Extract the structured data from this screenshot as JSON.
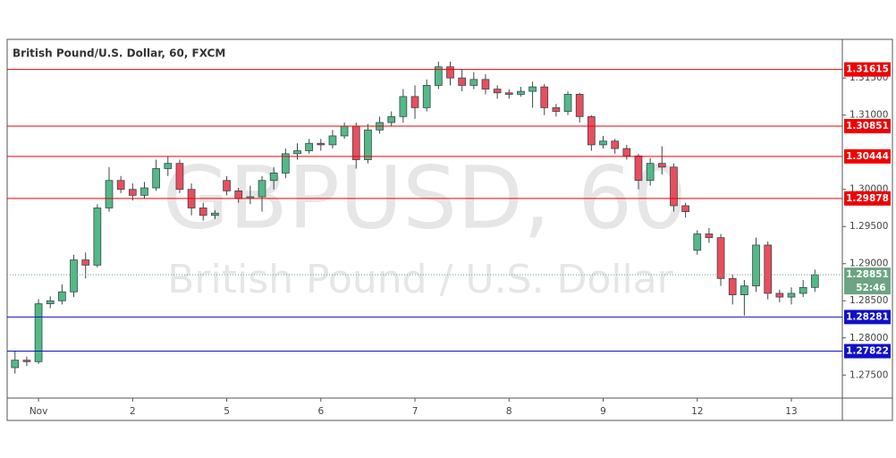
{
  "chart_data": {
    "type": "candlestick",
    "title": "British Pound/U.S. Dollar, 60, FXCM",
    "watermark": "GBPUSD, 60",
    "watermark_subtitle": "British Pound / U.S. Dollar",
    "x": [
      -6,
      -3,
      0,
      3,
      6,
      9,
      12,
      15,
      18,
      21,
      24,
      27,
      30,
      33,
      36,
      39,
      42,
      45,
      48,
      51,
      54,
      57,
      60,
      63,
      66,
      69,
      72,
      75,
      78,
      81,
      84,
      87,
      90,
      93,
      96,
      99,
      102,
      105,
      108,
      111,
      114,
      117,
      120,
      123,
      126,
      129,
      132,
      135,
      138,
      141,
      144,
      147,
      150,
      153,
      156,
      159,
      162,
      165,
      168,
      171,
      174,
      177,
      180,
      183,
      186,
      189,
      192,
      195,
      198
    ],
    "open": [
      1.276,
      1.277,
      1.2768,
      1.2846,
      1.285,
      1.2862,
      1.2905,
      1.2898,
      1.2975,
      1.3012,
      1.3,
      1.2992,
      1.3002,
      1.3028,
      1.3035,
      1.3,
      1.2975,
      1.2965,
      1.3012,
      1.2998,
      1.2988,
      1.299,
      1.3012,
      1.3022,
      1.3048,
      1.3052,
      1.3062,
      1.306,
      1.3072,
      1.3085,
      1.304,
      1.308,
      1.309,
      1.3098,
      1.3125,
      1.311,
      1.314,
      1.3165,
      1.315,
      1.314,
      1.3148,
      1.3135,
      1.313,
      1.3128,
      1.3132,
      1.3138,
      1.311,
      1.3105,
      1.3128,
      1.3098,
      1.306,
      1.3065,
      1.3055,
      1.3045,
      1.3012,
      1.3035,
      1.303,
      1.2978,
      1.2918,
      1.294,
      1.2935,
      1.288,
      1.2858,
      1.287,
      1.2925,
      1.286,
      1.2855,
      1.286,
      1.2868
    ],
    "high": [
      1.2782,
      1.2775,
      1.2852,
      1.2856,
      1.2872,
      1.2912,
      1.2915,
      1.298,
      1.303,
      1.3018,
      1.3008,
      1.301,
      1.304,
      1.3045,
      1.304,
      1.3008,
      1.2982,
      1.2972,
      1.3018,
      1.3002,
      1.3005,
      1.3018,
      1.303,
      1.3055,
      1.3062,
      1.3068,
      1.3068,
      1.308,
      1.309,
      1.309,
      1.3088,
      1.3098,
      1.3105,
      1.3135,
      1.314,
      1.3148,
      1.3172,
      1.3172,
      1.3162,
      1.3158,
      1.3155,
      1.314,
      1.3135,
      1.3138,
      1.3145,
      1.3142,
      1.3115,
      1.3132,
      1.313,
      1.31,
      1.3072,
      1.3068,
      1.306,
      1.3048,
      1.3042,
      1.3058,
      1.3035,
      1.2982,
      1.2945,
      1.2948,
      1.294,
      1.2885,
      1.2878,
      1.2935,
      1.293,
      1.2865,
      1.2868,
      1.2878,
      1.2892
    ],
    "low": [
      1.2752,
      1.2762,
      1.2765,
      1.284,
      1.2845,
      1.2855,
      1.288,
      1.2895,
      1.297,
      1.2995,
      1.2985,
      1.2988,
      1.2998,
      1.3018,
      1.2995,
      1.2965,
      1.2958,
      1.296,
      1.2992,
      1.2982,
      1.298,
      1.297,
      1.3,
      1.3015,
      1.304,
      1.3048,
      1.3052,
      1.3055,
      1.3068,
      1.3028,
      1.3035,
      1.3075,
      1.3085,
      1.309,
      1.3095,
      1.3105,
      1.3135,
      1.314,
      1.3132,
      1.3135,
      1.3128,
      1.3122,
      1.3122,
      1.3125,
      1.311,
      1.31,
      1.3098,
      1.31,
      1.309,
      1.3052,
      1.3055,
      1.3048,
      1.304,
      1.3,
      1.3005,
      1.302,
      1.297,
      1.2962,
      1.2912,
      1.2928,
      1.287,
      1.2845,
      1.283,
      1.2862,
      1.2852,
      1.2848,
      1.2845,
      1.2855,
      1.2862
    ],
    "close": [
      1.277,
      1.2768,
      1.2846,
      1.285,
      1.2862,
      1.2905,
      1.2898,
      1.2975,
      1.3012,
      1.3,
      1.2992,
      1.3002,
      1.3028,
      1.3035,
      1.3,
      1.2975,
      1.2965,
      1.2968,
      1.2998,
      1.2988,
      1.299,
      1.3012,
      1.3022,
      1.3048,
      1.3052,
      1.3062,
      1.306,
      1.3072,
      1.3085,
      1.304,
      1.308,
      1.309,
      1.3098,
      1.3125,
      1.311,
      1.314,
      1.3165,
      1.315,
      1.314,
      1.3148,
      1.3135,
      1.313,
      1.3128,
      1.3132,
      1.3138,
      1.311,
      1.3105,
      1.3128,
      1.3098,
      1.306,
      1.3065,
      1.3055,
      1.3045,
      1.3012,
      1.3035,
      1.303,
      1.2978,
      1.297,
      1.294,
      1.2935,
      1.288,
      1.2858,
      1.287,
      1.2925,
      1.286,
      1.2855,
      1.286,
      1.2868,
      1.2885
    ],
    "up_color": "#53b987",
    "down_color": "#eb4d5c",
    "wick_color": "#37474f",
    "xlim": [
      -8,
      205
    ],
    "ylim": [
      1.2719,
      1.3202
    ],
    "xticks": [
      {
        "value": 0,
        "label": "Nov"
      },
      {
        "value": 24,
        "label": "2"
      },
      {
        "value": 48,
        "label": "5"
      },
      {
        "value": 72,
        "label": "6"
      },
      {
        "value": 96,
        "label": "7"
      },
      {
        "value": 120,
        "label": "8"
      },
      {
        "value": 144,
        "label": "9"
      },
      {
        "value": 168,
        "label": "12"
      },
      {
        "value": 192,
        "label": "13"
      }
    ],
    "yticks": [
      {
        "value": 1.275,
        "label": "1.27500"
      },
      {
        "value": 1.28,
        "label": "1.28000"
      },
      {
        "value": 1.285,
        "label": "1.28500"
      },
      {
        "value": 1.29,
        "label": "1.29000"
      },
      {
        "value": 1.295,
        "label": "1.29500"
      },
      {
        "value": 1.3,
        "label": "1.30000"
      },
      {
        "value": 1.31,
        "label": "1.31000"
      },
      {
        "value": 1.315,
        "label": "1.31500"
      }
    ],
    "levels": [
      {
        "value": 1.31615,
        "color": "#f00000"
      },
      {
        "value": 1.30851,
        "color": "#f00000"
      },
      {
        "value": 1.30444,
        "color": "#f00000"
      },
      {
        "value": 1.29878,
        "color": "#f00000"
      },
      {
        "value": 1.28281,
        "color": "#1010c8"
      },
      {
        "value": 1.27822,
        "color": "#1010c8"
      }
    ],
    "last_price": 1.28851,
    "last_price_color": "#6ba583",
    "countdown": "52:46"
  }
}
